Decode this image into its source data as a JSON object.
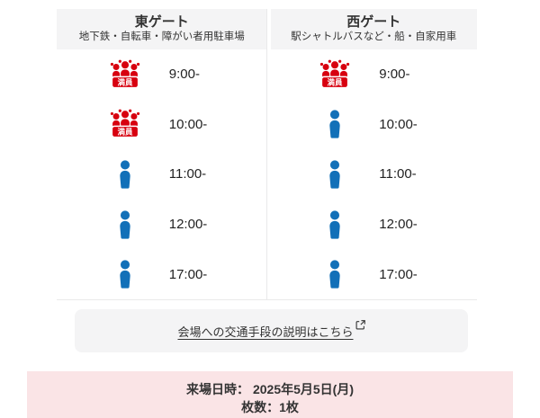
{
  "table": {
    "full_badge_label": "満員",
    "columns": [
      {
        "name": "東ゲート",
        "subtitle": "地下鉄・自転車・障がい者用駐車場",
        "rows": [
          {
            "time": "9:00-",
            "status": "full"
          },
          {
            "time": "10:00-",
            "status": "full"
          },
          {
            "time": "11:00-",
            "status": "available"
          },
          {
            "time": "12:00-",
            "status": "available"
          },
          {
            "time": "17:00-",
            "status": "available"
          }
        ]
      },
      {
        "name": "西ゲート",
        "subtitle": "駅シャトルバスなど・船・自家用車",
        "rows": [
          {
            "time": "9:00-",
            "status": "full"
          },
          {
            "time": "10:00-",
            "status": "available"
          },
          {
            "time": "11:00-",
            "status": "available"
          },
          {
            "time": "12:00-",
            "status": "available"
          },
          {
            "time": "17:00-",
            "status": "available"
          }
        ]
      }
    ]
  },
  "link": {
    "label": "会場への交通手段の説明はこちら",
    "icon": "external-link-icon"
  },
  "summary": {
    "visit_label": "来場日時：",
    "visit_value": "2025年5月5日(月)",
    "count_label": "枚数：",
    "count_value": "1枚"
  },
  "colors": {
    "available": "#1270b8",
    "full": "#d7000f",
    "header_bg": "#f4f4f5",
    "link_bg": "#f4f4f5",
    "summary_bg": "#fae4e6"
  }
}
